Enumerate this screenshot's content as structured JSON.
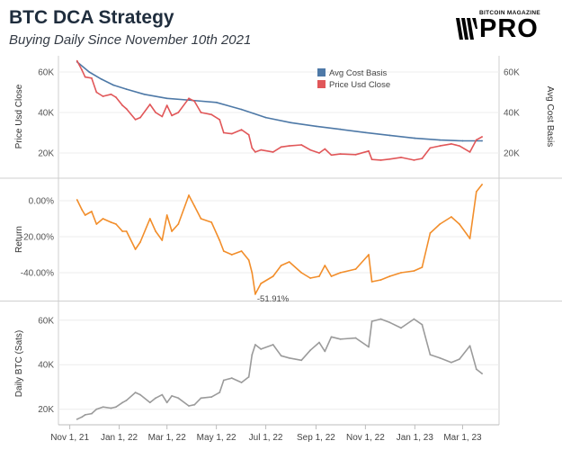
{
  "header": {
    "title": "BTC DCA Strategy",
    "subtitle": "Buying Daily Since November 10th 2021"
  },
  "logo": {
    "top_text": "BITCOIN MAGAZINE",
    "main_text": "PRO",
    "icon": "bitcoin-magazine-bars-icon"
  },
  "chart_data": [
    {
      "type": "line",
      "ylabel": "Price Usd Close",
      "ylabel_right": "Avg Cost Basis",
      "ylim": [
        8000,
        68000
      ],
      "yticks": [
        20000,
        40000,
        60000
      ],
      "ytick_labels": [
        "20K",
        "40K",
        "60K"
      ],
      "legend": {
        "placement": "top-right"
      },
      "series": [
        {
          "name": "Avg Cost Basis",
          "color": "#4e79a7",
          "x": [
            "2021-11-10",
            "2021-11-25",
            "2021-12-10",
            "2021-12-25",
            "2022-01-10",
            "2022-02-01",
            "2022-03-01",
            "2022-04-01",
            "2022-05-01",
            "2022-06-01",
            "2022-07-01",
            "2022-08-01",
            "2022-09-01",
            "2022-10-01",
            "2022-11-01",
            "2022-12-01",
            "2023-01-01",
            "2023-02-01",
            "2023-03-01",
            "2023-03-25"
          ],
          "y": [
            65000,
            60000,
            56500,
            53500,
            51500,
            49000,
            47000,
            46000,
            45000,
            41500,
            37500,
            35000,
            33200,
            31700,
            30100,
            28700,
            27300,
            26400,
            26000,
            26000
          ]
        },
        {
          "name": "Price Usd Close",
          "color": "#e15759",
          "x": [
            "2021-11-10",
            "2021-11-16",
            "2021-11-20",
            "2021-11-28",
            "2021-12-04",
            "2021-12-12",
            "2021-12-22",
            "2021-12-28",
            "2022-01-05",
            "2022-01-10",
            "2022-01-21",
            "2022-01-27",
            "2022-02-08",
            "2022-02-15",
            "2022-02-23",
            "2022-03-01",
            "2022-03-07",
            "2022-03-15",
            "2022-03-28",
            "2022-04-04",
            "2022-04-12",
            "2022-04-25",
            "2022-05-05",
            "2022-05-10",
            "2022-05-20",
            "2022-06-01",
            "2022-06-10",
            "2022-06-14",
            "2022-06-18",
            "2022-06-25",
            "2022-07-10",
            "2022-07-20",
            "2022-07-30",
            "2022-08-14",
            "2022-08-25",
            "2022-09-05",
            "2022-09-12",
            "2022-09-20",
            "2022-10-01",
            "2022-10-20",
            "2022-11-05",
            "2022-11-09",
            "2022-11-20",
            "2022-12-01",
            "2022-12-15",
            "2022-12-31",
            "2023-01-10",
            "2023-01-20",
            "2023-02-01",
            "2023-02-15",
            "2023-02-25",
            "2023-03-10",
            "2023-03-18",
            "2023-03-25"
          ],
          "y": [
            65500,
            61000,
            57500,
            57000,
            50000,
            48000,
            49000,
            47500,
            43500,
            41800,
            36500,
            37500,
            44000,
            40000,
            38000,
            43500,
            38500,
            40000,
            47000,
            45500,
            40000,
            39000,
            36500,
            30000,
            29500,
            31500,
            29000,
            22500,
            20500,
            21500,
            20500,
            23000,
            23500,
            24000,
            21500,
            20000,
            22000,
            19000,
            19500,
            19200,
            21000,
            16800,
            16500,
            17000,
            17800,
            16500,
            17300,
            22500,
            23500,
            24500,
            23500,
            20500,
            26500,
            28000
          ]
        }
      ]
    },
    {
      "type": "line",
      "ylabel": "Return",
      "ylim": [
        -55,
        12
      ],
      "yticks": [
        0,
        -20,
        -40
      ],
      "ytick_labels": [
        "0.00%",
        "-20.00%",
        "-40.00%"
      ],
      "annotation": {
        "text": "-51.91%",
        "x": "2022-06-18",
        "y": -51.91
      },
      "series": [
        {
          "name": "",
          "color": "#f28e2b",
          "x": [
            "2021-11-10",
            "2021-11-16",
            "2021-11-20",
            "2021-11-28",
            "2021-12-04",
            "2021-12-12",
            "2021-12-22",
            "2021-12-28",
            "2022-01-05",
            "2022-01-10",
            "2022-01-21",
            "2022-01-27",
            "2022-02-08",
            "2022-02-15",
            "2022-02-23",
            "2022-03-01",
            "2022-03-07",
            "2022-03-15",
            "2022-03-28",
            "2022-04-04",
            "2022-04-12",
            "2022-04-25",
            "2022-05-05",
            "2022-05-10",
            "2022-05-20",
            "2022-06-01",
            "2022-06-10",
            "2022-06-14",
            "2022-06-18",
            "2022-06-25",
            "2022-07-10",
            "2022-07-20",
            "2022-07-30",
            "2022-08-14",
            "2022-08-25",
            "2022-09-05",
            "2022-09-12",
            "2022-09-20",
            "2022-10-01",
            "2022-10-20",
            "2022-11-05",
            "2022-11-09",
            "2022-11-20",
            "2022-12-01",
            "2022-12-15",
            "2022-12-31",
            "2023-01-10",
            "2023-01-20",
            "2023-02-01",
            "2023-02-15",
            "2023-02-25",
            "2023-03-10",
            "2023-03-18",
            "2023-03-25"
          ],
          "y": [
            0.5,
            -5,
            -8,
            -6,
            -13,
            -10,
            -12,
            -13,
            -17,
            -17,
            -27,
            -23,
            -10,
            -17,
            -22,
            -8,
            -17,
            -13,
            3,
            -3,
            -10,
            -12,
            -22,
            -28,
            -30,
            -28,
            -33,
            -40,
            -51.91,
            -46,
            -42,
            -36,
            -34,
            -40,
            -43,
            -42,
            -36,
            -42,
            -40,
            -38,
            -30,
            -45,
            -44,
            -42,
            -40,
            -39,
            -37,
            -18,
            -13,
            -9,
            -13,
            -21,
            5,
            9
          ]
        }
      ]
    },
    {
      "type": "line",
      "ylabel": "Daily BTC (Sats)",
      "ylim": [
        13000,
        68000
      ],
      "yticks": [
        20000,
        40000,
        60000
      ],
      "ytick_labels": [
        "20K",
        "40K",
        "60K"
      ],
      "series": [
        {
          "name": "",
          "color": "#9b9b9b",
          "x": [
            "2021-11-10",
            "2021-11-16",
            "2021-11-20",
            "2021-11-28",
            "2021-12-04",
            "2021-12-12",
            "2021-12-22",
            "2021-12-28",
            "2022-01-05",
            "2022-01-10",
            "2022-01-21",
            "2022-01-27",
            "2022-02-08",
            "2022-02-15",
            "2022-02-23",
            "2022-03-01",
            "2022-03-07",
            "2022-03-15",
            "2022-03-28",
            "2022-04-04",
            "2022-04-12",
            "2022-04-25",
            "2022-05-05",
            "2022-05-10",
            "2022-05-20",
            "2022-06-01",
            "2022-06-10",
            "2022-06-14",
            "2022-06-18",
            "2022-06-25",
            "2022-07-10",
            "2022-07-20",
            "2022-07-30",
            "2022-08-14",
            "2022-08-25",
            "2022-09-05",
            "2022-09-12",
            "2022-09-20",
            "2022-10-01",
            "2022-10-20",
            "2022-11-05",
            "2022-11-09",
            "2022-11-20",
            "2022-12-01",
            "2022-12-15",
            "2022-12-31",
            "2023-01-10",
            "2023-01-20",
            "2023-02-01",
            "2023-02-15",
            "2023-02-25",
            "2023-03-10",
            "2023-03-18",
            "2023-03-25"
          ],
          "y": [
            15500,
            16500,
            17500,
            18000,
            20000,
            21000,
            20500,
            21000,
            23000,
            24000,
            27500,
            26500,
            23000,
            25000,
            26500,
            23000,
            26000,
            25000,
            21500,
            22000,
            25000,
            25500,
            27500,
            33000,
            34000,
            32000,
            34500,
            44500,
            49000,
            47000,
            49000,
            44000,
            43000,
            42000,
            46500,
            50000,
            46000,
            52500,
            51500,
            52000,
            48000,
            59500,
            60500,
            59000,
            56500,
            60500,
            58000,
            44500,
            43000,
            41000,
            42500,
            48500,
            38000,
            36000
          ]
        }
      ]
    }
  ],
  "x_axis": {
    "ticks": [
      "2021-11-01",
      "2022-01-01",
      "2022-03-01",
      "2022-05-01",
      "2022-07-01",
      "2022-09-01",
      "2022-11-01",
      "2023-01-01",
      "2023-03-01"
    ],
    "tick_labels": [
      "Nov 1, 21",
      "Jan 1, 22",
      "Mar 1, 22",
      "May 1, 22",
      "Jul 1, 22",
      "Sep 1, 22",
      "Nov 1, 22",
      "Jan 1, 23",
      "Mar 1, 23"
    ],
    "range": [
      "2021-10-18",
      "2023-04-15"
    ]
  }
}
